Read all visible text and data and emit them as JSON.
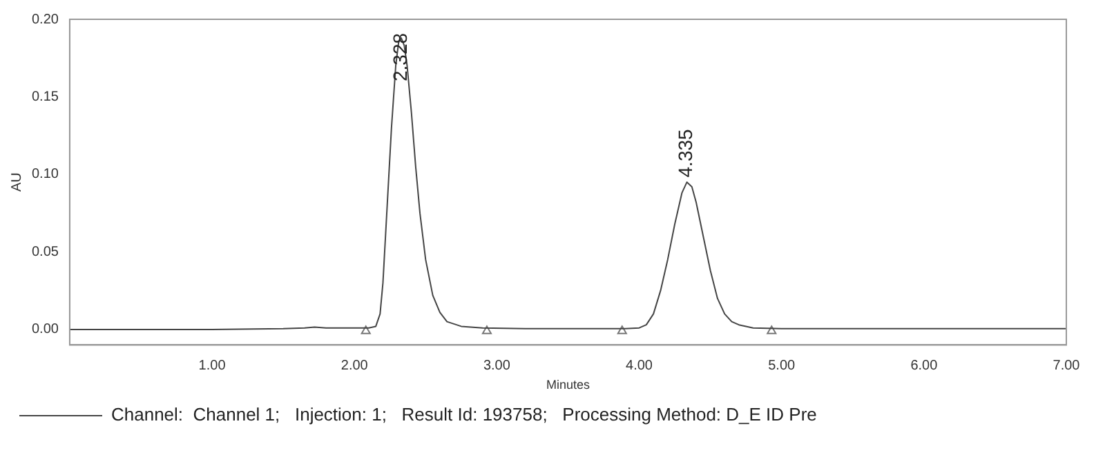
{
  "chart_data": {
    "type": "line",
    "xlabel": "Minutes",
    "ylabel": "AU",
    "xlim": [
      0,
      7
    ],
    "ylim": [
      -0.01,
      0.2
    ],
    "xticks": [
      {
        "value": 1,
        "label": "1.00"
      },
      {
        "value": 2,
        "label": "2.00"
      },
      {
        "value": 3,
        "label": "3.00"
      },
      {
        "value": 4,
        "label": "4.00"
      },
      {
        "value": 5,
        "label": "5.00"
      },
      {
        "value": 6,
        "label": "6.00"
      },
      {
        "value": 7,
        "label": "7.00"
      }
    ],
    "yticks": [
      {
        "value": 0,
        "label": "0.00"
      },
      {
        "value": 0.05,
        "label": "0.05"
      },
      {
        "value": 0.1,
        "label": "0.10"
      },
      {
        "value": 0.15,
        "label": "0.15"
      },
      {
        "value": 0.2,
        "label": "0.20"
      }
    ],
    "grid": false,
    "legend": "bottom",
    "marker": "none",
    "line_style": "solid",
    "series": [
      {
        "name": "Channel:  Channel 1;   Injection: 1;   Result Id: 193758;   Processing Method: D_E ID Pre",
        "color": "#444444",
        "x": [
          0,
          0.5,
          1.0,
          1.5,
          1.65,
          1.72,
          1.8,
          2.0,
          2.1,
          2.15,
          2.18,
          2.2,
          2.23,
          2.26,
          2.29,
          2.31,
          2.328,
          2.35,
          2.37,
          2.4,
          2.43,
          2.46,
          2.5,
          2.55,
          2.6,
          2.65,
          2.75,
          2.9,
          3.2,
          3.5,
          3.9,
          4.0,
          4.05,
          4.1,
          4.15,
          4.2,
          4.25,
          4.3,
          4.335,
          4.37,
          4.4,
          4.45,
          4.5,
          4.55,
          4.6,
          4.65,
          4.7,
          4.8,
          5.0,
          6.0,
          7.0
        ],
        "values": [
          0,
          0,
          0,
          0.0005,
          0.001,
          0.0015,
          0.001,
          0.001,
          0.001,
          0.002,
          0.01,
          0.03,
          0.08,
          0.13,
          0.17,
          0.185,
          0.188,
          0.183,
          0.17,
          0.14,
          0.105,
          0.075,
          0.045,
          0.022,
          0.011,
          0.005,
          0.002,
          0.001,
          0.0005,
          0.0005,
          0.0005,
          0.001,
          0.003,
          0.01,
          0.025,
          0.045,
          0.068,
          0.088,
          0.095,
          0.092,
          0.082,
          0.06,
          0.038,
          0.02,
          0.01,
          0.005,
          0.003,
          0.001,
          0.0005,
          0.0005,
          0.0005
        ]
      },
      {
        "type": "scatter",
        "marker": "triangle",
        "color": "#777777",
        "x": [
          2.08,
          2.93,
          3.88,
          4.93
        ],
        "values": [
          -0.001,
          -0.001,
          -0.001,
          -0.001
        ]
      }
    ],
    "annotations": [
      {
        "text": "2.328",
        "x": 2.328,
        "y": 0.16
      },
      {
        "text": "4.335",
        "x": 4.335,
        "y": 0.098
      }
    ]
  }
}
